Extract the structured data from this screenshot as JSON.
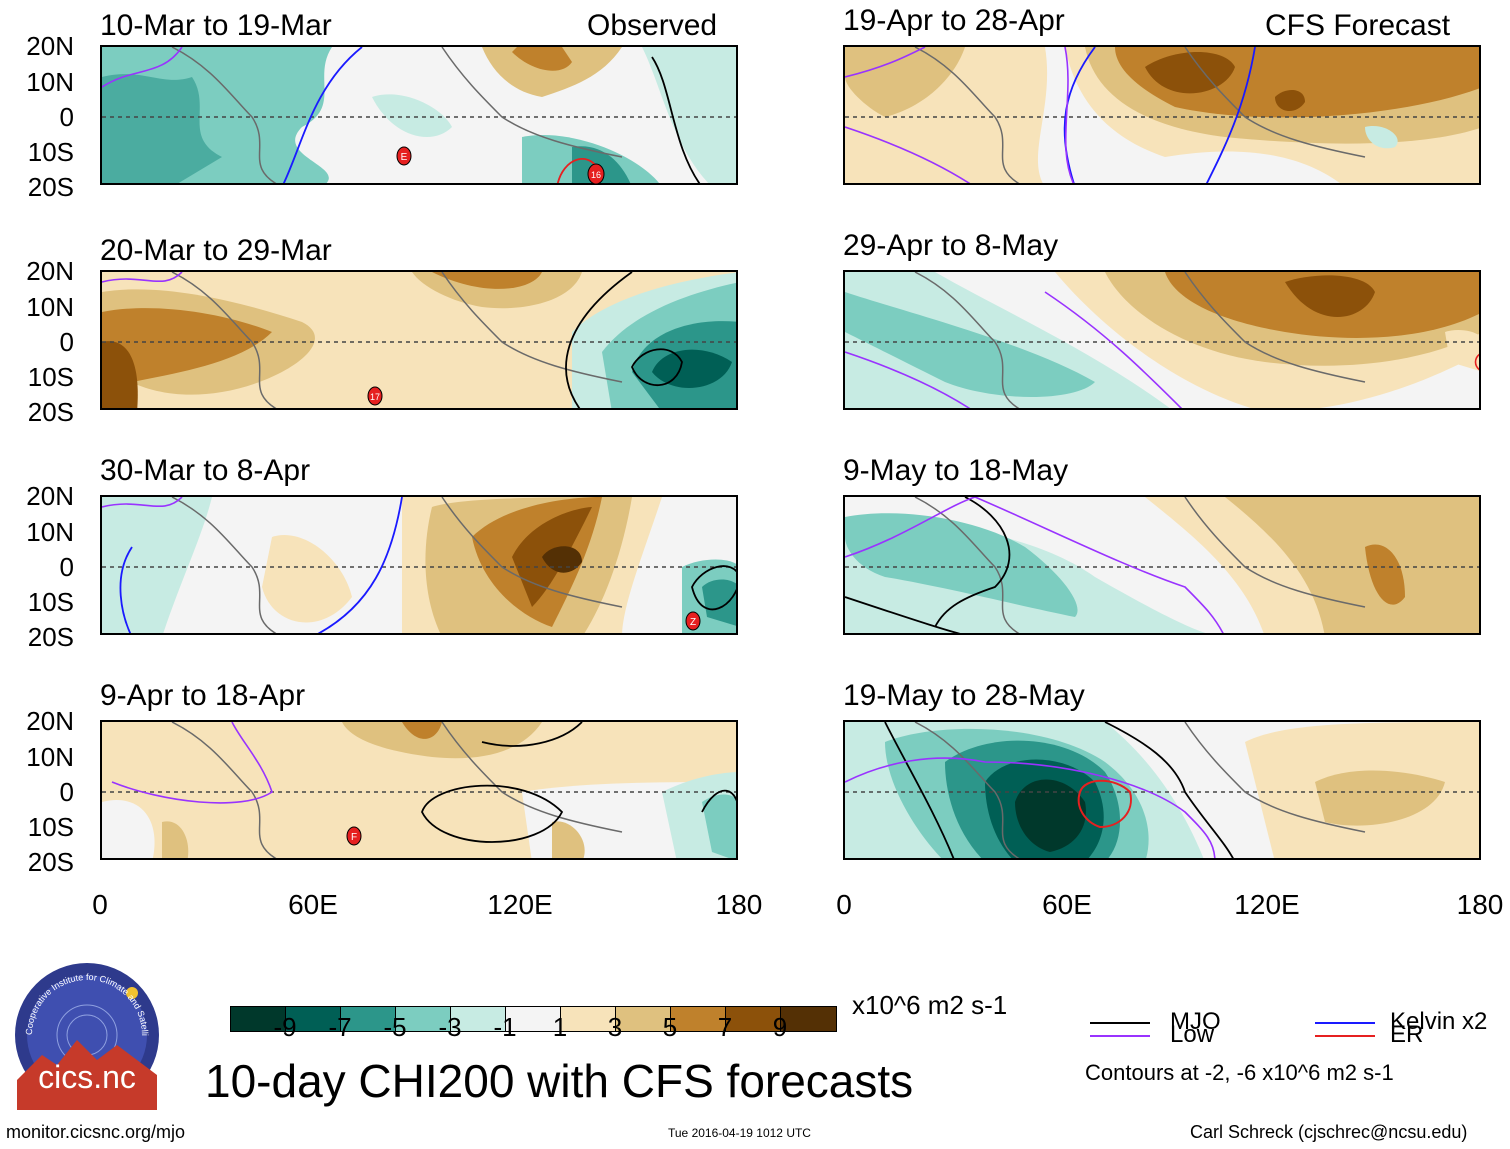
{
  "panels": {
    "p1": {
      "title": "10-Mar to 19-Mar",
      "label": "Observed"
    },
    "p2": {
      "title": "20-Mar to 29-Mar"
    },
    "p3": {
      "title": "30-Mar to 8-Apr"
    },
    "p4": {
      "title": "9-Apr to 18-Apr"
    },
    "p5": {
      "title": "19-Apr to 28-Apr",
      "label": "CFS Forecast"
    },
    "p6": {
      "title": "29-Apr to 8-May"
    },
    "p7": {
      "title": "9-May to 18-May"
    },
    "p8": {
      "title": "19-May to 28-May"
    }
  },
  "lat_labels": [
    "20N",
    "10N",
    "0",
    "10S",
    "20S"
  ],
  "lon_labels": [
    "0",
    "60E",
    "120E",
    "180"
  ],
  "markers": {
    "p1a": "E",
    "p1b": "16",
    "p2": "17",
    "p3": "Z",
    "p4": "F"
  },
  "colorbar": {
    "colors": [
      "#00382b",
      "#005f55",
      "#2c968a",
      "#7ccdc0",
      "#c7ebe3",
      "#f4f4f4",
      "#f7e3ba",
      "#dfc17f",
      "#bf812c",
      "#8c510a",
      "#543005"
    ],
    "labels": [
      "-9",
      "-7",
      "-5",
      "-3",
      "-1",
      "1",
      "3",
      "5",
      "7",
      "9"
    ],
    "units": "x10^6 m2 s-1"
  },
  "main_title": "10-day CHI200 with CFS forecasts",
  "legend": {
    "mjo": "MJO",
    "low": "Low",
    "kelvin": "Kelvin x2",
    "er": "ER",
    "contours": "Contours at -2, -6 x10^6 m2 s-1",
    "colors": {
      "mjo": "#000000",
      "low": "#9933ff",
      "kelvin": "#1a1aff",
      "er": "#e62020"
    }
  },
  "logo_text": "cics.nc",
  "logo_ring": "Cooperative Institute for Climate and Satellites",
  "footer": {
    "left": "monitor.cicsnc.org/mjo",
    "center": "Tue 2016-04-19 1012 UTC",
    "right": "Carl Schreck (cjschrec@ncsu.edu)"
  }
}
